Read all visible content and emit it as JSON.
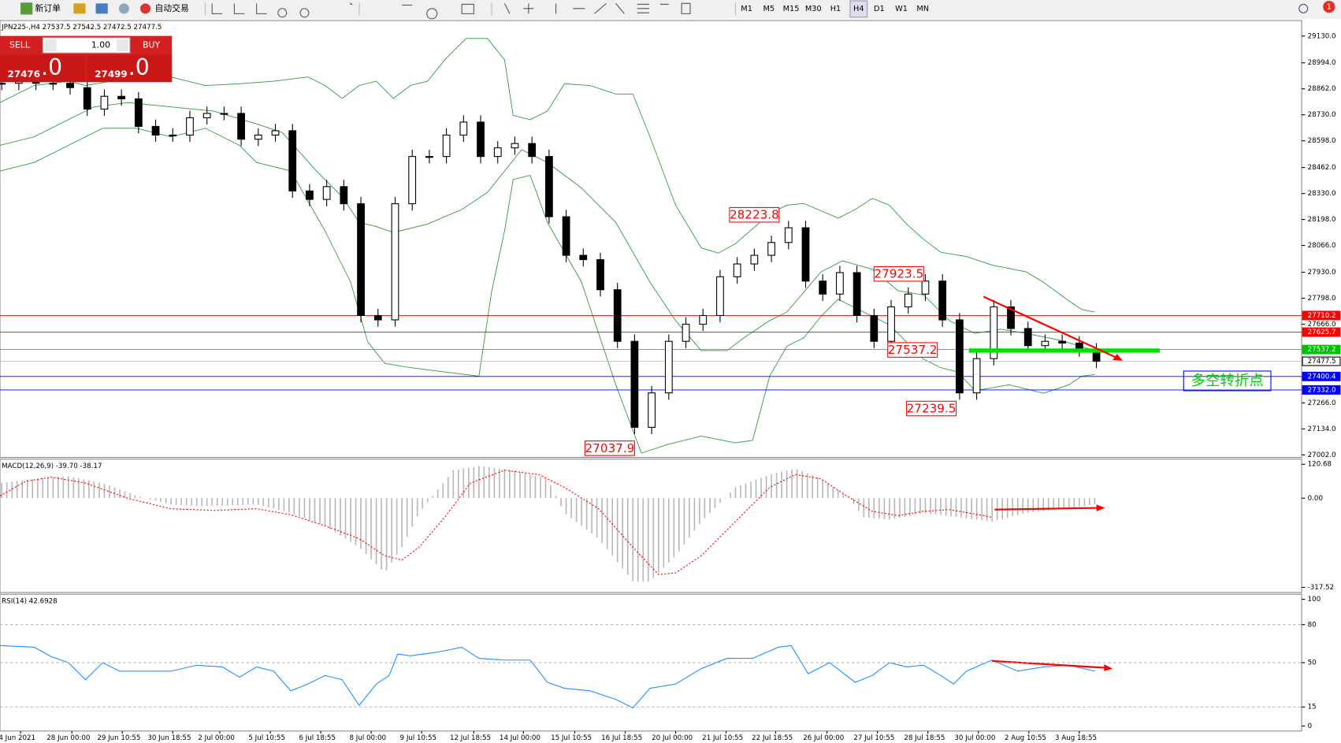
{
  "toolbar": {
    "new_order": "新订单",
    "auto_trade": "自动交易",
    "timeframes": [
      "M1",
      "M5",
      "M15",
      "M30",
      "H1",
      "H4",
      "D1",
      "W1",
      "MN"
    ],
    "notifications": "1"
  },
  "trade_panel": {
    "sell": "SELL",
    "buy": "BUY",
    "lot": "1.00",
    "bid_main": "27476",
    "bid_frac": ".0",
    "ask_main": "27499",
    "ask_frac": ".0"
  },
  "time_axis": [
    "4 Jun 2021",
    "28 Jun 00:00",
    "29 Jun 10:55",
    "30 Jun 18:55",
    "2 Jul 00:00",
    "5 Jul 10:55",
    "6 Jul 18:55",
    "8 Jul 00:00",
    "9 Jul 10:55",
    "12 Jul 18:55",
    "14 Jul 00:00",
    "15 Jul 10:55",
    "16 Jul 18:55",
    "20 Jul 00:00",
    "21 Jul 10:55",
    "22 Jul 18:55",
    "26 Jul 00:00",
    "27 Jul 10:55",
    "28 Jul 18:55",
    "30 Jul 00:00",
    "2 Aug 10:55",
    "3 Aug 18:55"
  ],
  "chart_data": [
    {
      "type": "candlestick",
      "title": "JPN225-,H4 27537.5 27542.5 27472.5 27477.5",
      "closes": [
        28890,
        28898,
        28890,
        28890,
        28868,
        28759,
        28824,
        28811,
        28671,
        28627,
        28627,
        28715,
        28737,
        28737,
        28606,
        28627,
        28649,
        28343,
        28300,
        28365,
        28278,
        27710,
        27688,
        28278,
        28518,
        28518,
        28627,
        28693,
        28518,
        28562,
        28584,
        28518,
        28212,
        28016,
        27994,
        27841,
        27579,
        27142,
        27317,
        27579,
        27666,
        27710,
        27907,
        27972,
        28016,
        28081,
        28156,
        27885,
        27819,
        27928,
        27710,
        27579,
        27754,
        27819,
        27885,
        27688,
        27317,
        27491,
        27754,
        27644,
        27557,
        27579,
        27570,
        27535,
        27477.5
      ],
      "ylim": [
        26989,
        29209
      ],
      "yticks": [
        {
          "value": 29130,
          "label": "29130.0"
        },
        {
          "value": 28994,
          "label": "28994.0"
        },
        {
          "value": 28862,
          "label": "28862.0"
        },
        {
          "value": 28730,
          "label": "28730.0"
        },
        {
          "value": 28598,
          "label": "28598.0"
        },
        {
          "value": 28462,
          "label": "28462.0"
        },
        {
          "value": 28330,
          "label": "28330.0"
        },
        {
          "value": 28198,
          "label": "28198.0"
        },
        {
          "value": 28066,
          "label": "28066.0"
        },
        {
          "value": 27930,
          "label": "27930.0"
        },
        {
          "value": 27798,
          "label": "27798.0"
        },
        {
          "value": 27666,
          "label": "27666.0"
        },
        {
          "value": 27266,
          "label": "27266.0"
        },
        {
          "value": 27134,
          "label": "27134.0"
        },
        {
          "value": 27002,
          "label": "27002.0"
        }
      ],
      "levels": [
        {
          "value": 27710.2,
          "color": "#ff0000"
        },
        {
          "value": 27625.7,
          "color": "#ff0000"
        },
        {
          "value": 27537.2,
          "color": "#00c000"
        },
        {
          "value": 27477.5,
          "color": "#c0c0c0"
        },
        {
          "value": 27400.4,
          "color": "#0000ff"
        },
        {
          "value": {
            "value": 27332,
            "label": "27332.0"
          },
          "color": "#0000ff"
        }
      ],
      "annotations": [
        28223.8,
        27923.5,
        27537.2,
        27239.5,
        27037.9
      ],
      "note": "多空转折点"
    },
    {
      "type": "macd",
      "title": "MACD(12,26,9) -39.70 -38.17",
      "ylim": [
        -336,
        139
      ],
      "yticks": [
        120.68,
        {
          "value": 0,
          "label": "0.00"
        },
        -317.52
      ]
    },
    {
      "type": "rsi",
      "title": "RSI(14) 42.6928",
      "ylim": [
        -4,
        104
      ],
      "yticks": [
        100,
        80,
        50,
        15,
        0
      ]
    }
  ]
}
